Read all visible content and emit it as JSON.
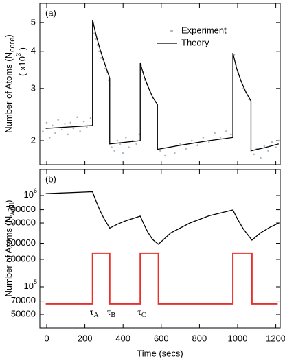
{
  "chart_data": [
    {
      "type": "line",
      "panel_label": "(a)",
      "ylabel": "Number of Atoms (N",
      "ylabel_sub": "core",
      "ylabel_end": ")",
      "ylabel2": "( x10",
      "ylabel2_sup": "3",
      "ylabel2_end": " )",
      "log_y": true,
      "legend": "upper right",
      "xlim": [
        -36,
        1223
      ],
      "xticks": [
        0,
        200,
        400,
        600,
        800,
        1000,
        1200
      ],
      "ylim": [
        1.66,
        5.8
      ],
      "yticks": [
        2,
        3,
        4,
        5
      ],
      "series": [
        {
          "name": "Experiment",
          "type": "scatter",
          "color": "#a9b8c4",
          "x": [
            -20,
            0,
            15,
            30,
            45,
            60,
            80,
            95,
            110,
            125,
            140,
            160,
            175,
            195,
            210,
            230,
            245,
            250,
            258,
            266,
            275,
            285,
            295,
            305,
            315,
            325,
            340,
            355,
            370,
            385,
            400,
            415,
            430,
            450,
            470,
            485,
            495,
            505,
            515,
            525,
            540,
            555,
            570,
            595,
            620,
            645,
            670,
            700,
            730,
            760,
            790,
            820,
            850,
            880,
            910,
            940,
            965,
            982,
            992,
            1002,
            1015,
            1030,
            1045,
            1060,
            1085,
            1100,
            1120,
            1140,
            1160,
            1180,
            1200,
            1215
          ],
          "values": [
            2.15,
            2.3,
            2.05,
            2.25,
            2.12,
            2.35,
            2.18,
            2.28,
            2.1,
            2.3,
            2.2,
            2.4,
            2.15,
            2.32,
            2.22,
            2.38,
            5.0,
            4.6,
            4.4,
            4.2,
            4.0,
            3.8,
            3.75,
            3.5,
            3.4,
            3.2,
            1.9,
            1.85,
            2.0,
            1.95,
            1.82,
            2.05,
            1.9,
            2.0,
            1.95,
            2.1,
            3.6,
            3.4,
            3.2,
            3.1,
            2.95,
            2.8,
            2.7,
            1.85,
            1.78,
            1.9,
            1.82,
            1.95,
            1.88,
            2.0,
            1.93,
            2.05,
            1.98,
            2.12,
            2.05,
            2.15,
            2.1,
            3.9,
            3.6,
            3.4,
            3.2,
            3.0,
            2.9,
            2.75,
            1.8,
            1.88,
            1.75,
            1.92,
            1.85,
            1.98,
            1.9,
            2.0
          ]
        },
        {
          "name": "Theory",
          "type": "line",
          "color": "#000000",
          "x": [
            -5,
            240,
            240,
            260,
            280,
            300,
            330,
            330,
            490,
            490,
            510,
            530,
            555,
            580,
            580,
            700,
            850,
            975,
            975,
            995,
            1020,
            1045,
            1070,
            1070,
            1150,
            1215
          ],
          "values": [
            2.2,
            2.25,
            5.1,
            4.5,
            4.05,
            3.7,
            3.25,
            1.95,
            2.0,
            3.65,
            3.3,
            3.05,
            2.8,
            2.65,
            1.87,
            1.93,
            2.0,
            2.05,
            3.95,
            3.5,
            3.15,
            2.9,
            2.72,
            1.85,
            1.9,
            1.95
          ]
        }
      ]
    },
    {
      "type": "line",
      "panel_label": "(b)",
      "ylabel": "Number of Atoms (N",
      "ylabel_sub": "wall",
      "ylabel_end": ")",
      "xlabel": "Time (secs)",
      "log_y": true,
      "xlim": [
        -36,
        1223
      ],
      "xticks": [
        0,
        200,
        400,
        600,
        800,
        1000,
        1200
      ],
      "ylim": [
        35400,
        1930000
      ],
      "yticks": [
        {
          "value": 1000000,
          "label": "10",
          "exponent": "6"
        },
        700000,
        500000,
        300000,
        200000,
        {
          "value": 100000,
          "label": "10",
          "exponent": "5"
        },
        70000,
        50000
      ],
      "series": [
        {
          "type": "line",
          "color": "#000000",
          "x": [
            -5,
            240,
            260,
            280,
            300,
            330,
            370,
            410,
            450,
            490,
            510,
            530,
            555,
            585,
            650,
            750,
            850,
            975,
            1000,
            1030,
            1075,
            1120,
            1170,
            1215
          ],
          "values": [
            1050000,
            1100000,
            850000,
            680000,
            560000,
            440000,
            485000,
            525000,
            560000,
            595000,
            480000,
            395000,
            330000,
            293000,
            390000,
            500000,
            600000,
            695000,
            550000,
            430000,
            325000,
            390000,
            450000,
            500000
          ]
        },
        {
          "type": "line",
          "color": "#e8302a",
          "x": [
            -5,
            240,
            240,
            330,
            330,
            490,
            490,
            585,
            585,
            975,
            975,
            1075,
            1075,
            1210
          ],
          "values": [
            65000,
            65000,
            234000,
            234000,
            65000,
            65000,
            234000,
            234000,
            65000,
            65000,
            234000,
            234000,
            65000,
            65000
          ]
        }
      ],
      "annotations": [
        {
          "text": "τ",
          "sub": "A",
          "x": 240
        },
        {
          "text": "τ",
          "sub": "B",
          "x": 330
        },
        {
          "text": "τ",
          "sub": "C",
          "x": 490
        }
      ]
    }
  ]
}
